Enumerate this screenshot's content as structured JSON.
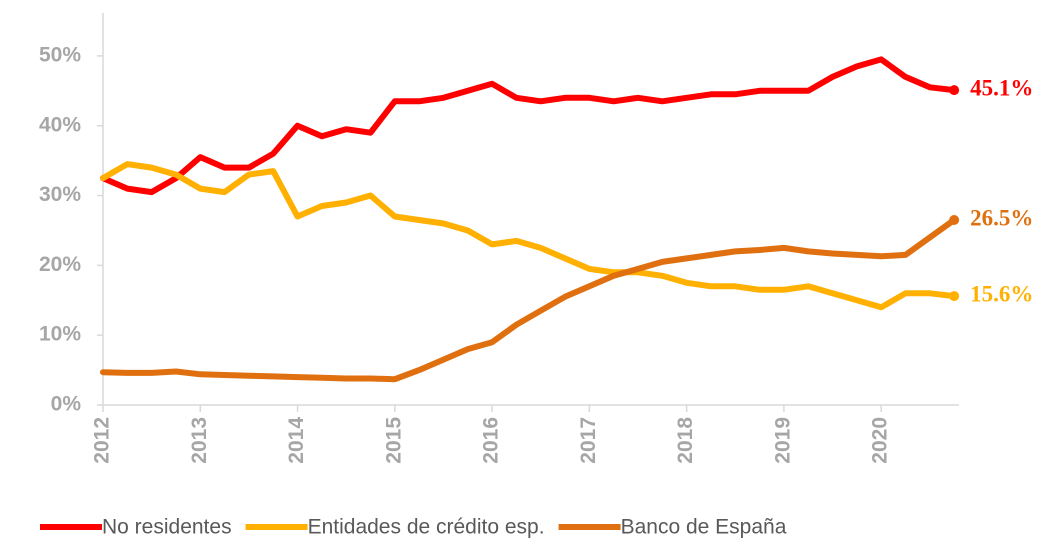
{
  "chart_data": {
    "type": "line",
    "x": [
      2012,
      2012.25,
      2012.5,
      2012.75,
      2013,
      2013.25,
      2013.5,
      2013.75,
      2014,
      2014.25,
      2014.5,
      2014.75,
      2015,
      2015.25,
      2015.5,
      2015.75,
      2016,
      2016.25,
      2016.5,
      2016.75,
      2017,
      2017.25,
      2017.5,
      2017.75,
      2018,
      2018.25,
      2018.5,
      2018.75,
      2019,
      2019.25,
      2019.5,
      2019.75,
      2020,
      2020.25,
      2020.5,
      2020.75
    ],
    "series": [
      {
        "name": "No residentes",
        "color": "#ff0000",
        "values": [
          32.5,
          31,
          30.5,
          32.5,
          35.5,
          34,
          34,
          36,
          40,
          38.5,
          39.5,
          39,
          43.5,
          43.5,
          44,
          45,
          46,
          44,
          43.5,
          44,
          44,
          43.5,
          44,
          43.5,
          44,
          44.5,
          44.5,
          45,
          45,
          45,
          47,
          48.5,
          49.5,
          47,
          45.5,
          45.1
        ],
        "value_labels": [
          null,
          null,
          null,
          null,
          null,
          null,
          null,
          null,
          null,
          null,
          null,
          null,
          null,
          null,
          null,
          null,
          null,
          null,
          null,
          null,
          null,
          null,
          null,
          null,
          null,
          null,
          null,
          null,
          null,
          null,
          null,
          null,
          null,
          null,
          null,
          "45.1%"
        ]
      },
      {
        "name": "Entidades de crédito esp.",
        "color": "#ffb000",
        "values": [
          32.5,
          34.5,
          34,
          33,
          31,
          30.5,
          33,
          33.5,
          27,
          28.5,
          29,
          30,
          27,
          26.5,
          26,
          25,
          23,
          23.5,
          22.5,
          21,
          19.5,
          19,
          19,
          18.5,
          17.5,
          17,
          17,
          16.5,
          16.5,
          17,
          16,
          15,
          14,
          16,
          16,
          15.6
        ],
        "value_labels": [
          null,
          null,
          null,
          null,
          null,
          null,
          null,
          null,
          null,
          null,
          null,
          null,
          null,
          null,
          null,
          null,
          null,
          null,
          null,
          null,
          null,
          null,
          null,
          null,
          null,
          null,
          null,
          null,
          null,
          null,
          null,
          null,
          null,
          null,
          null,
          "15.6%"
        ]
      },
      {
        "name": "Banco de España",
        "color": "#e0700f",
        "values": [
          4.7,
          4.6,
          4.6,
          4.8,
          4.4,
          4.3,
          4.2,
          4.1,
          4,
          3.9,
          3.8,
          3.8,
          3.7,
          5,
          6.5,
          8,
          9,
          11.5,
          13.5,
          15.5,
          17,
          18.5,
          19.5,
          20.5,
          21,
          21.5,
          22,
          22.2,
          22.5,
          22,
          21.7,
          21.5,
          21.3,
          21.5,
          24,
          26.5
        ],
        "value_labels": [
          null,
          null,
          null,
          null,
          null,
          null,
          null,
          null,
          null,
          null,
          null,
          null,
          null,
          null,
          null,
          null,
          null,
          null,
          null,
          null,
          null,
          null,
          null,
          null,
          null,
          null,
          null,
          null,
          null,
          null,
          null,
          null,
          null,
          null,
          null,
          "26.5%"
        ]
      }
    ],
    "xlim": [
      2012,
      2020.8
    ],
    "xticks": [
      2012,
      2013,
      2014,
      2015,
      2016,
      2017,
      2018,
      2019,
      2020
    ],
    "ylim": [
      0,
      55
    ],
    "yticks": [
      {
        "value": 0,
        "label": "0%"
      },
      {
        "value": 10,
        "label": "10%"
      },
      {
        "value": 20,
        "label": "20%"
      },
      {
        "value": 30,
        "label": "30%"
      },
      {
        "value": 40,
        "label": "40%"
      },
      {
        "value": 50,
        "label": "50%"
      }
    ],
    "legend": "bottom"
  }
}
